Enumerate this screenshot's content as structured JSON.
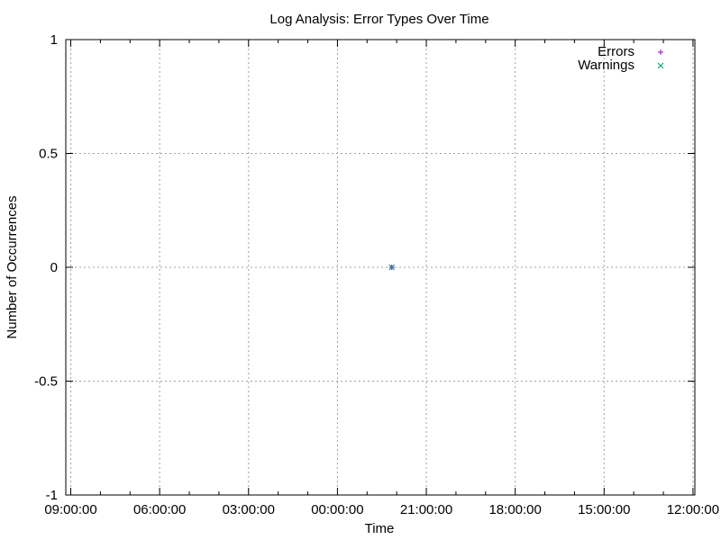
{
  "chart_data": {
    "type": "scatter",
    "title": "Log Analysis: Error Types Over Time",
    "xlabel": "Time",
    "ylabel": "Number of Occurrences",
    "grid": true,
    "legend_position": "top-right",
    "x_axis_direction": "reversed",
    "x_tick_labels": [
      "09:00:00",
      "06:00:00",
      "03:00:00",
      "00:00:00",
      "21:00:00",
      "18:00:00",
      "15:00:00",
      "12:00:00"
    ],
    "y_ticks": [
      {
        "value": 1,
        "label": "1"
      },
      {
        "value": 0.5,
        "label": "0.5"
      },
      {
        "value": 0,
        "label": "0"
      },
      {
        "value": -0.5,
        "label": "-0.5"
      },
      {
        "value": -1,
        "label": "-1"
      }
    ],
    "ylim": [
      -1,
      1
    ],
    "series": [
      {
        "name": "Errors",
        "marker": "plus",
        "color": "#9400d3",
        "points": [
          {
            "x": "22:10:00",
            "y": 0
          }
        ]
      },
      {
        "name": "Warnings",
        "marker": "cross",
        "color": "#009e73",
        "points": [
          {
            "x": "22:10:00",
            "y": 0
          }
        ]
      }
    ]
  }
}
